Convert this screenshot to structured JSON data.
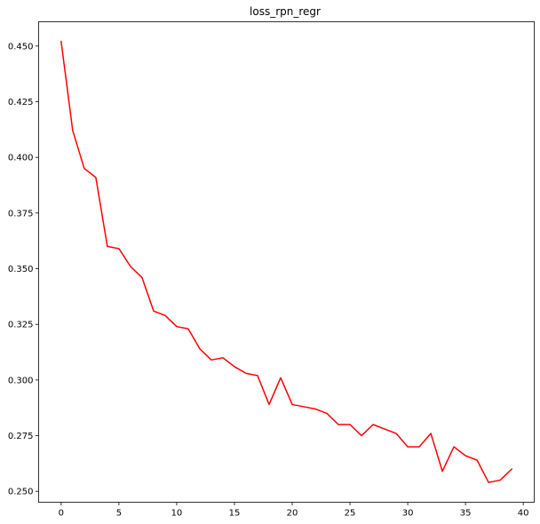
{
  "chart_data": {
    "type": "line",
    "title": "loss_rpn_regr",
    "xlabel": "",
    "ylabel": "",
    "xlim": [
      -1.95,
      40.95
    ],
    "ylim": [
      0.2451,
      0.4609
    ],
    "xticks": [
      0,
      5,
      10,
      15,
      20,
      25,
      30,
      35,
      40
    ],
    "xtick_labels": [
      "0",
      "5",
      "10",
      "15",
      "20",
      "25",
      "30",
      "35",
      "40"
    ],
    "yticks": [
      0.25,
      0.275,
      0.3,
      0.325,
      0.35,
      0.375,
      0.4,
      0.425,
      0.45
    ],
    "ytick_labels": [
      "0.250",
      "0.275",
      "0.300",
      "0.325",
      "0.350",
      "0.375",
      "0.400",
      "0.425",
      "0.450"
    ],
    "grid": false,
    "series": [
      {
        "name": "loss_rpn_regr",
        "color": "#ff0000",
        "x": [
          0,
          1,
          2,
          3,
          4,
          5,
          6,
          7,
          8,
          9,
          10,
          11,
          12,
          13,
          14,
          15,
          16,
          17,
          18,
          19,
          20,
          21,
          22,
          23,
          24,
          25,
          26,
          27,
          28,
          29,
          30,
          31,
          32,
          33,
          34,
          35,
          36,
          37,
          38,
          39
        ],
        "y": [
          0.452,
          0.412,
          0.395,
          0.391,
          0.36,
          0.359,
          0.351,
          0.346,
          0.331,
          0.329,
          0.324,
          0.323,
          0.314,
          0.309,
          0.31,
          0.306,
          0.303,
          0.302,
          0.289,
          0.301,
          0.289,
          0.288,
          0.287,
          0.285,
          0.28,
          0.28,
          0.275,
          0.28,
          0.278,
          0.276,
          0.27,
          0.27,
          0.276,
          0.259,
          0.27,
          0.266,
          0.264,
          0.254,
          0.255,
          0.26
        ]
      }
    ]
  }
}
